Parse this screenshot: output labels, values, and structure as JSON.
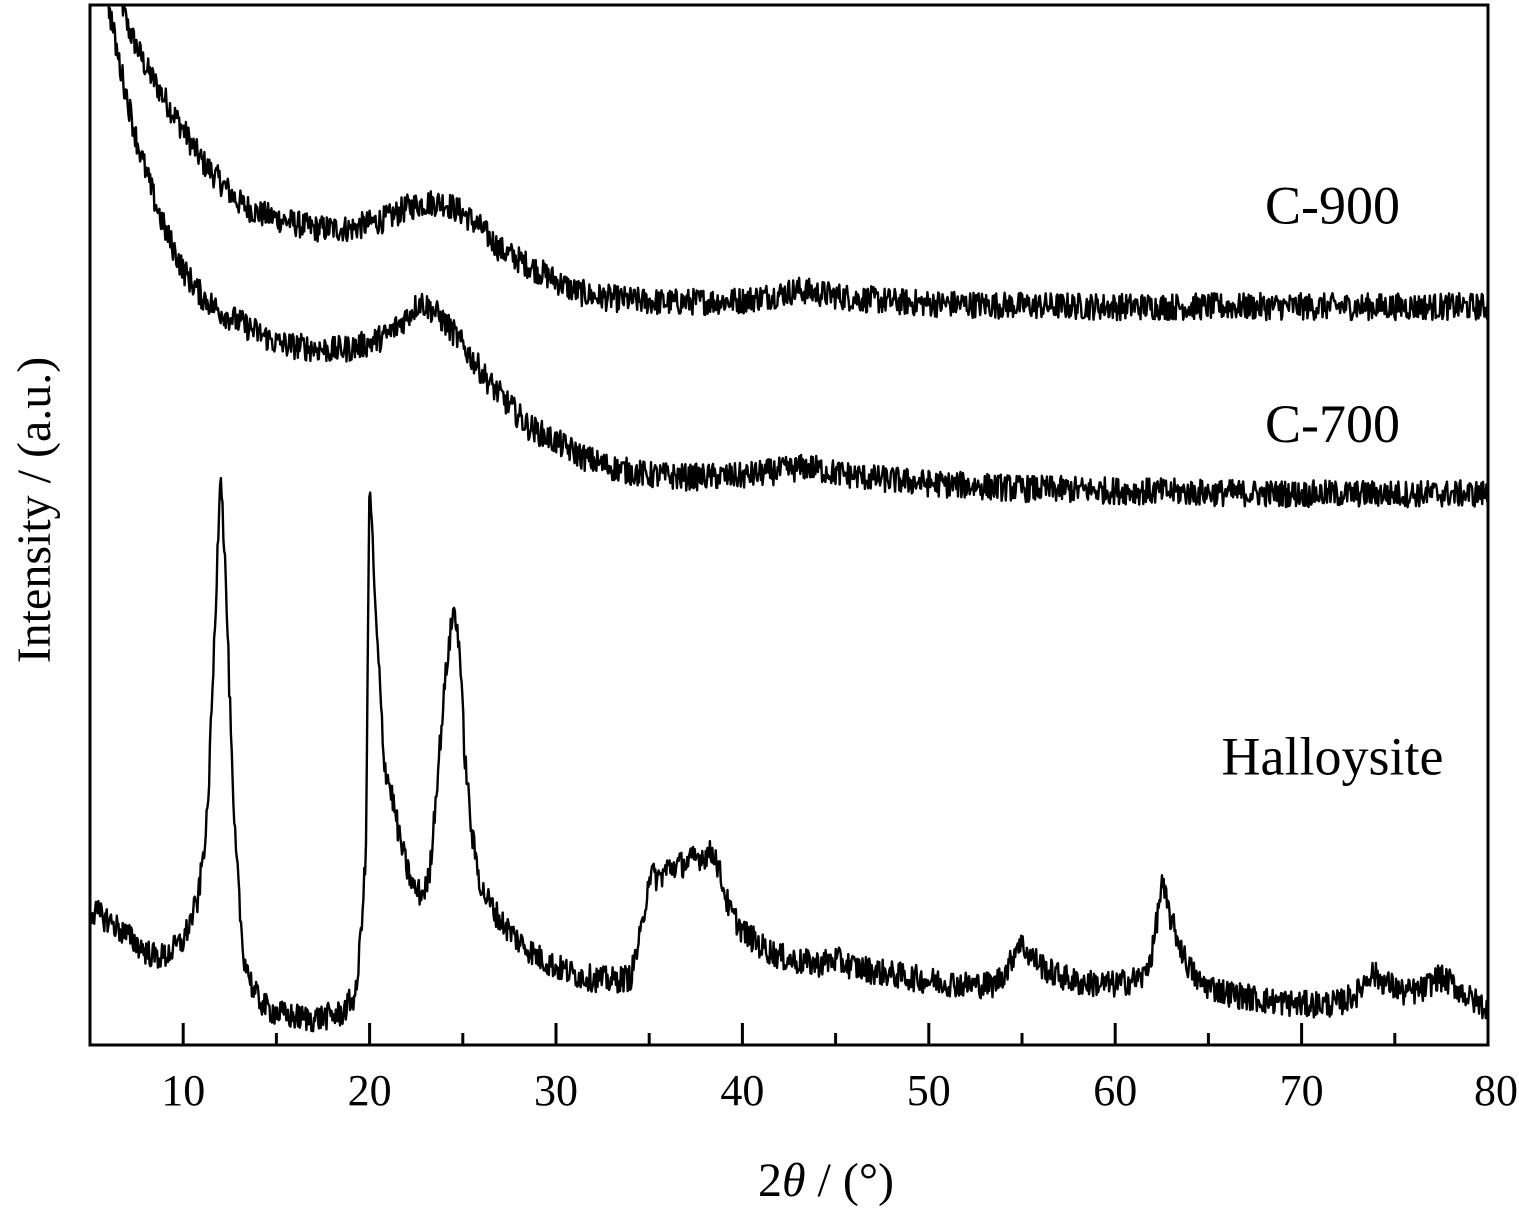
{
  "chart_data": {
    "type": "line",
    "xlabel_prefix": "2",
    "xlabel_symbol": "θ",
    "xlabel_suffix": " / (°)",
    "ylabel": "Intensity / (a.u.)",
    "xlim": [
      5,
      80
    ],
    "ylim": [
      0,
      100
    ],
    "xticks": [
      10,
      20,
      30,
      40,
      50,
      60,
      70,
      80
    ],
    "minor_xticks": [
      15,
      25,
      35,
      45,
      55,
      65,
      75
    ],
    "yticks_shown": false,
    "grid": false,
    "line_color": "#000000",
    "series": [
      {
        "name": "C-900",
        "x": [
          6.5,
          7.0,
          7.5,
          8.0,
          9.0,
          10.0,
          11.0,
          12.0,
          13.0,
          14.0,
          15.0,
          16.0,
          17.0,
          18.0,
          19.0,
          20.0,
          21.0,
          22.0,
          23.0,
          24.0,
          25.0,
          26.0,
          27.0,
          28.0,
          29.0,
          30.0,
          31.0,
          32.0,
          33.0,
          34.0,
          35.0,
          36.0,
          38.0,
          40.0,
          42.0,
          43.0,
          44.0,
          46.0,
          48.0,
          50.0,
          55.0,
          60.0,
          65.0,
          70.0,
          75.0,
          80.0
        ],
        "y": [
          102,
          98,
          96,
          94,
          91,
          88,
          85,
          83,
          81,
          80,
          79.5,
          79,
          78.5,
          78.5,
          78.5,
          79,
          79.5,
          80.5,
          81,
          81,
          80,
          78.5,
          76.5,
          75.5,
          74.5,
          73.5,
          72.5,
          72,
          71.8,
          71.6,
          71.5,
          71.4,
          71.5,
          71.6,
          72.2,
          72.6,
          72.3,
          71.8,
          71.5,
          71.3,
          71.1,
          71.0,
          71.0,
          71.0,
          71.0,
          71.0
        ]
      },
      {
        "name": "C-700",
        "x": [
          5.8,
          6.5,
          7.0,
          7.5,
          8.0,
          8.5,
          9.0,
          9.5,
          10.0,
          11.0,
          12.0,
          13.0,
          14.0,
          15.0,
          16.0,
          17.0,
          18.0,
          19.0,
          20.0,
          21.0,
          22.0,
          22.7,
          23.5,
          24.5,
          25.5,
          26.5,
          27.5,
          28.5,
          29.5,
          30.5,
          31.5,
          32.5,
          33.5,
          35.0,
          37.0,
          40.0,
          42.0,
          43.5,
          45.0,
          47.0,
          50.0,
          55.0,
          60.0,
          65.0,
          70.0,
          75.0,
          80.0
        ],
        "y": [
          102,
          95,
          91,
          87,
          84,
          81,
          78.5,
          76.5,
          74.5,
          72,
          70.5,
          69.5,
          68.5,
          67.5,
          67.2,
          67,
          66.8,
          67,
          67.5,
          68.3,
          70,
          71.5,
          70.5,
          68.5,
          66,
          63.5,
          61.5,
          59.5,
          58.5,
          57.5,
          56.5,
          55.8,
          55.3,
          54.8,
          54.6,
          54.7,
          55.2,
          55.6,
          55.0,
          54.5,
          54.0,
          53.5,
          53.3,
          53.1,
          53.0,
          53.0,
          53.0
        ]
      },
      {
        "name": "Halloysite",
        "x": [
          5.0,
          6.0,
          7.0,
          8.0,
          8.5,
          9.0,
          10.0,
          10.8,
          11.3,
          11.7,
          12.0,
          12.3,
          12.7,
          13.2,
          13.8,
          14.5,
          15.5,
          17.0,
          18.5,
          19.3,
          19.8,
          20.0,
          20.3,
          20.8,
          21.2,
          21.6,
          22.0,
          22.4,
          22.8,
          23.2,
          23.6,
          24.1,
          24.5,
          24.8,
          25.1,
          25.5,
          26.0,
          27.0,
          28.0,
          29.0,
          30.0,
          31.0,
          32.0,
          33.0,
          34.0,
          34.6,
          35.0,
          35.5,
          36.0,
          37.0,
          37.5,
          38.5,
          39.3,
          40.0,
          41.0,
          42.0,
          43.0,
          44.0,
          45.0,
          46.0,
          48.0,
          50.0,
          52.0,
          53.5,
          54.3,
          54.8,
          55.5,
          56.5,
          58.0,
          60.0,
          61.5,
          62.0,
          62.5,
          63.0,
          63.8,
          64.5,
          66.0,
          68.0,
          70.0,
          72.0,
          73.0,
          73.7,
          74.5,
          75.5,
          76.5,
          77.3,
          78.0,
          79.0,
          80.0
        ],
        "y": [
          13,
          12,
          10.5,
          9,
          8.5,
          8.5,
          10,
          14,
          22,
          40,
          56,
          44,
          22,
          9,
          5,
          3.5,
          2.8,
          2.5,
          3,
          5,
          18,
          55,
          42,
          27,
          24,
          20,
          17,
          15,
          14.5,
          16,
          25,
          36,
          42,
          39,
          28,
          20,
          15,
          12,
          10,
          8.5,
          7.5,
          6.8,
          6.4,
          6.2,
          6.5,
          11,
          16.5,
          16,
          17,
          17.5,
          18,
          18.5,
          13,
          11,
          9.5,
          8.5,
          8,
          7.8,
          8.2,
          7.5,
          6.8,
          6.2,
          5.8,
          5.8,
          7.5,
          10,
          8.5,
          7,
          6,
          5.8,
          6.5,
          9,
          15.5,
          12,
          8,
          6,
          5,
          4.3,
          3.9,
          4,
          5,
          7,
          6,
          5,
          5.3,
          6.5,
          6,
          4.5,
          3.5
        ]
      }
    ],
    "series_labels": [
      {
        "text": "C-900",
        "x": 62,
        "y": 79
      },
      {
        "text": "C-700",
        "x": 62,
        "y": 58
      },
      {
        "text": "Halloysite",
        "x": 62,
        "y": 26
      }
    ]
  }
}
